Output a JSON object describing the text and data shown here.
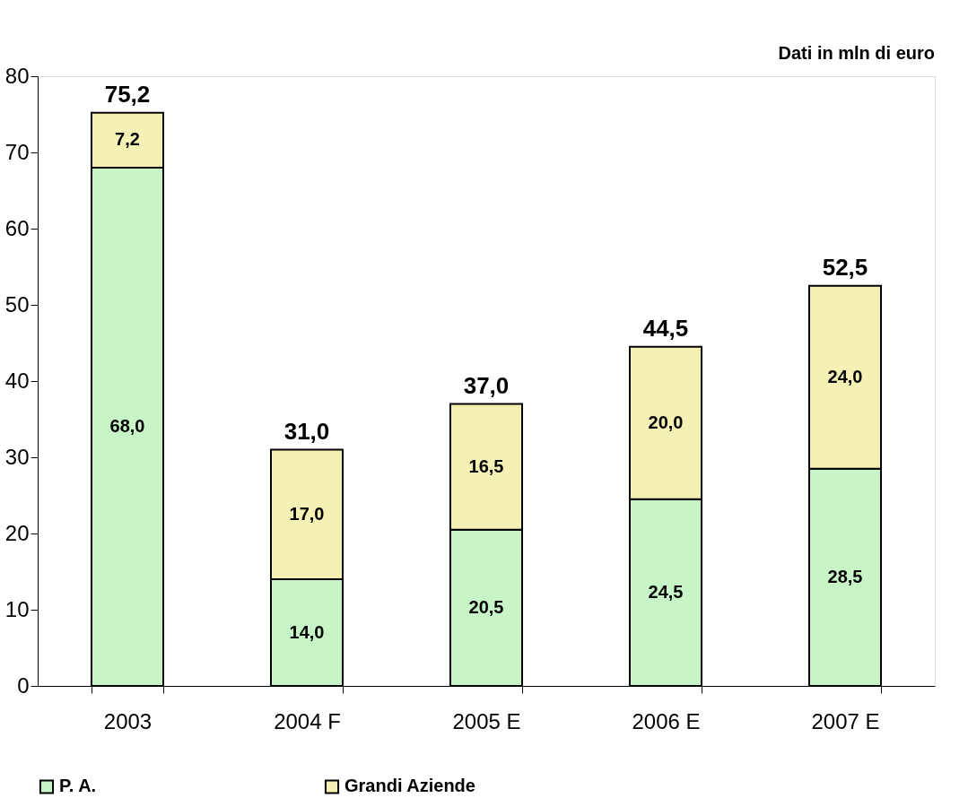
{
  "chart_data": {
    "type": "bar",
    "stacked": true,
    "categories": [
      "2003",
      "2004 F",
      "2005 E",
      "2006 E",
      "2007 E"
    ],
    "series": [
      {
        "name": "P. A.",
        "color": "#c8f5c8",
        "values": [
          68.0,
          14.0,
          20.5,
          24.5,
          28.5
        ],
        "value_labels": [
          "68,0",
          "14,0",
          "20,5",
          "24,5",
          "28,5"
        ]
      },
      {
        "name": "Grandi Aziende",
        "color": "#f5f0b4",
        "values": [
          7.2,
          17.0,
          16.5,
          20.0,
          24.0
        ],
        "value_labels": [
          "7,2",
          "17,0",
          "16,5",
          "20,0",
          "24,0"
        ]
      }
    ],
    "totals": [
      "75,2",
      "31,0",
      "37,0",
      "44,5",
      "52,5"
    ],
    "ylim": [
      0,
      80
    ],
    "yticks": [
      0,
      10,
      20,
      30,
      40,
      50,
      60,
      70,
      80
    ],
    "grid": false,
    "legend": "bottom",
    "annotations": [
      "Dati in mln di euro"
    ]
  }
}
